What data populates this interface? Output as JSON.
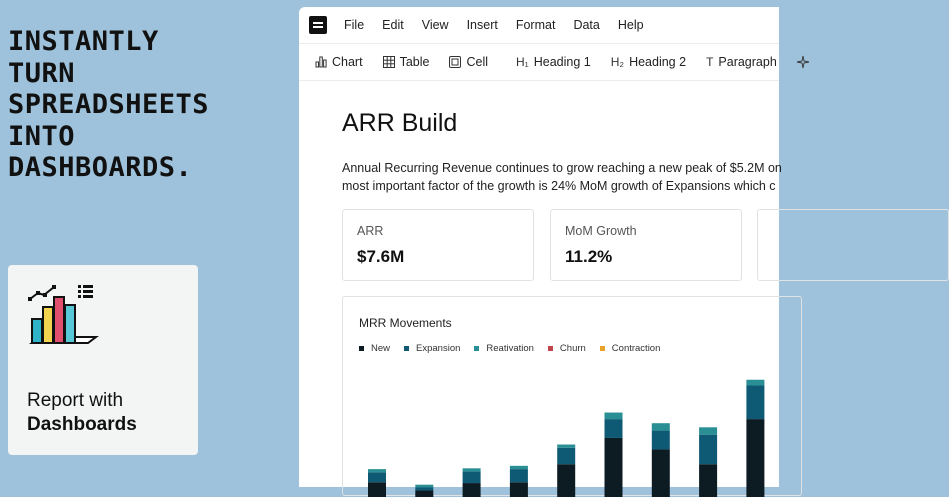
{
  "headline": [
    "INSTANTLY",
    "TURN",
    "SPREADSHEETS",
    "INTO",
    "DASHBOARDS."
  ],
  "report_card": {
    "line1": "Report with",
    "line2": "Dashboards",
    "icon": "bar-chart-illustration-icon"
  },
  "menu": [
    "File",
    "Edit",
    "View",
    "Insert",
    "Format",
    "Data",
    "Help"
  ],
  "toolbar": {
    "chart": "Chart",
    "table": "Table",
    "cell": "Cell",
    "h1": "Heading 1",
    "h2": "Heading 2",
    "paragraph": "Paragraph",
    "h1_icon": "H₁",
    "h2_icon": "H₂",
    "paragraph_icon": "T"
  },
  "doc": {
    "title": "ARR Build",
    "line1": "Annual Recurring Revenue continues to grow reaching a new peak of $5.2M on",
    "line2": "most important factor of the growth is 24% MoM growth of Expansions which c"
  },
  "metrics": [
    {
      "label": "ARR",
      "value": "$7.6M"
    },
    {
      "label": "MoM Growth",
      "value": "11.2%"
    }
  ],
  "colors": {
    "new": "#0d1b22",
    "expansion": "#0e5a75",
    "reativation": "#2a8f94",
    "churn": "#c0454a",
    "contraction": "#e8a12a"
  },
  "chart_data": {
    "type": "bar",
    "title": "MRR Movements",
    "stacked": true,
    "legend_position": "top-left",
    "series": [
      {
        "name": "New",
        "color": "#0d1b22",
        "values": [
          18,
          8,
          17,
          18,
          40,
          72,
          58,
          40,
          95
        ]
      },
      {
        "name": "Expansion",
        "color": "#0e5a75",
        "values": [
          12,
          4,
          14,
          16,
          20,
          23,
          23,
          36,
          41
        ]
      },
      {
        "name": "Reativation",
        "color": "#2a8f94",
        "values": [
          4,
          3,
          4,
          4,
          4,
          8,
          9,
          9,
          7
        ]
      },
      {
        "name": "Churn",
        "color": "#c0454a",
        "values": [
          0,
          0,
          0,
          0,
          0,
          0,
          0,
          0,
          0
        ]
      },
      {
        "name": "Contraction",
        "color": "#e8a12a",
        "values": [
          0,
          0,
          0,
          0,
          0,
          0,
          0,
          0,
          0
        ]
      }
    ]
  }
}
